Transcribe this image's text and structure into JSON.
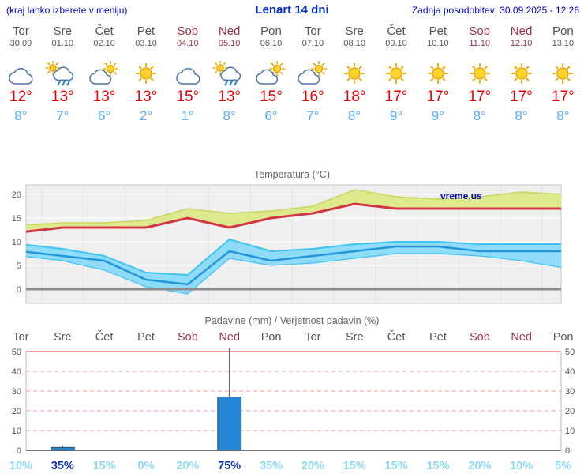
{
  "header": {
    "hint": "(kraj lahko izberete v meniju)",
    "title": "Lenart 14 dni",
    "updated": "Zadnja posodobitev: 30.09.2025 - 12:26"
  },
  "watermark": "vreme.us",
  "forecast": {
    "days": [
      {
        "name": "Tor",
        "date": "30.09",
        "weekend": false,
        "icon": "cloudy",
        "high": "12°",
        "low": "8°"
      },
      {
        "name": "Sre",
        "date": "01.10",
        "weekend": false,
        "icon": "sun-shower",
        "high": "13°",
        "low": "7°"
      },
      {
        "name": "Čet",
        "date": "02.10",
        "weekend": false,
        "icon": "partly-cloudy",
        "high": "13°",
        "low": "6°"
      },
      {
        "name": "Pet",
        "date": "03.10",
        "weekend": false,
        "icon": "sunny",
        "high": "13°",
        "low": "2°"
      },
      {
        "name": "Sob",
        "date": "04.10",
        "weekend": true,
        "icon": "cloudy",
        "high": "15°",
        "low": "1°"
      },
      {
        "name": "Ned",
        "date": "05.10",
        "weekend": true,
        "icon": "sun-shower",
        "high": "13°",
        "low": "8°"
      },
      {
        "name": "Pon",
        "date": "06.10",
        "weekend": false,
        "icon": "partly-cloudy",
        "high": "15°",
        "low": "6°"
      },
      {
        "name": "Tor",
        "date": "07.10",
        "weekend": false,
        "icon": "partly-cloudy",
        "high": "16°",
        "low": "7°"
      },
      {
        "name": "Sre",
        "date": "08.10",
        "weekend": false,
        "icon": "sunny",
        "high": "18°",
        "low": "8°"
      },
      {
        "name": "Čet",
        "date": "09.10",
        "weekend": false,
        "icon": "sunny",
        "high": "17°",
        "low": "9°"
      },
      {
        "name": "Pet",
        "date": "10.10",
        "weekend": false,
        "icon": "sunny",
        "high": "17°",
        "low": "9°"
      },
      {
        "name": "Sob",
        "date": "11.10",
        "weekend": true,
        "icon": "sunny",
        "high": "17°",
        "low": "8°"
      },
      {
        "name": "Ned",
        "date": "12.10",
        "weekend": true,
        "icon": "sunny",
        "high": "17°",
        "low": "8°"
      },
      {
        "name": "Pon",
        "date": "13.10",
        "weekend": false,
        "icon": "sunny",
        "high": "17°",
        "low": "8°"
      }
    ]
  },
  "chart_data": [
    {
      "type": "area",
      "title": "Temperatura (°C)",
      "x_labels": [
        "Tor",
        "Sre",
        "Čet",
        "Pet",
        "Sob",
        "Ned",
        "Pon",
        "Tor",
        "Sre",
        "Čet",
        "Pet",
        "Sob",
        "Ned",
        "Pon"
      ],
      "ylim": [
        -3,
        22
      ],
      "yticks": [
        0,
        5,
        10,
        15,
        20
      ],
      "grid": true,
      "series": [
        {
          "name": "max_band_top",
          "values": [
            13.5,
            14,
            14,
            14.5,
            17,
            16,
            16.5,
            17.5,
            21,
            19.5,
            19,
            19.5,
            20.5,
            20
          ]
        },
        {
          "name": "temperature",
          "values": [
            12,
            13,
            13,
            13,
            15,
            13,
            15,
            16,
            18,
            17,
            17,
            17,
            17,
            17
          ]
        },
        {
          "name": "min_band_top",
          "values": [
            9.5,
            8.5,
            7,
            3.5,
            3,
            10.5,
            8,
            8.5,
            9.5,
            10,
            10,
            9.5,
            9.5,
            9.5
          ]
        },
        {
          "name": "min_temperature",
          "values": [
            8,
            7,
            6,
            2,
            1,
            8,
            6,
            7,
            8,
            9,
            9,
            8,
            8,
            8
          ]
        },
        {
          "name": "min_band_bottom",
          "values": [
            7,
            6,
            4,
            0.5,
            -1,
            6.5,
            5,
            5.5,
            6.5,
            7.5,
            7.5,
            7,
            6,
            4.5
          ]
        }
      ]
    },
    {
      "type": "bar",
      "title": "Padavine (mm) / Verjetnost padavin (%)",
      "categories": [
        "Tor",
        "Sre",
        "Čet",
        "Pet",
        "Sob",
        "Ned",
        "Pon",
        "Tor",
        "Sre",
        "Čet",
        "Pet",
        "Sob",
        "Ned",
        "Pon"
      ],
      "precipitation_mm": [
        0,
        1.5,
        0,
        0,
        0,
        27,
        0,
        0,
        0,
        0,
        0,
        0,
        0,
        0
      ],
      "precipitation_max_mm": [
        0,
        2.5,
        0,
        0,
        0,
        52,
        0,
        0,
        0,
        0,
        0,
        0,
        0,
        0
      ],
      "probability_pct": [
        10,
        35,
        15,
        0,
        20,
        75,
        35,
        20,
        15,
        15,
        15,
        20,
        10,
        5
      ],
      "ylim": [
        0,
        50
      ],
      "yticks": [
        0,
        10,
        20,
        30,
        40,
        50
      ]
    }
  ],
  "colors": {
    "header_text": "#0000cc",
    "title_text": "#0033cc",
    "weekday_text": "#555555",
    "weekend_text": "#993344",
    "high_temp": "#ee0000",
    "low_temp": "#55aaff",
    "chart_title": "#666666",
    "temp_line": "#d43545",
    "max_band_fill": "#dde98c",
    "max_band_edge": "#c6d860",
    "min_band_fill": "#8edcf8",
    "min_band_edge": "#3ec3f5",
    "min_line": "#2196d8",
    "zero_line": "#8c8c8c",
    "bar_fill": "#2585d7",
    "whisker": "#666666",
    "grid_red": "#f09999",
    "prob_normal": "#8fd9f0",
    "prob_emphasis": "#1133aa",
    "watermark_text": "#0000bb"
  }
}
